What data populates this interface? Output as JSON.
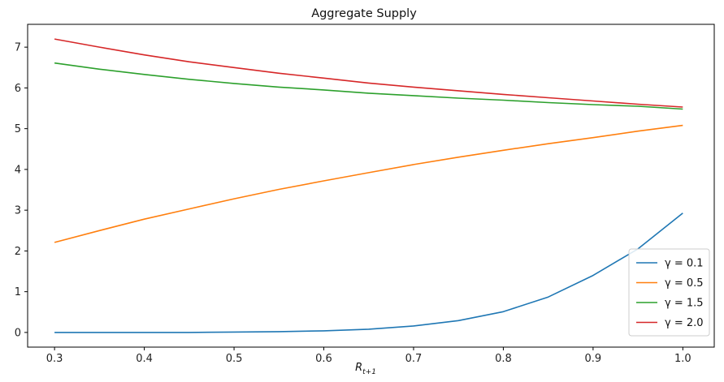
{
  "chart_data": {
    "type": "line",
    "title": "Aggregate Supply",
    "xlabel": "R",
    "xlabel_sub": "t+1",
    "ylabel": "",
    "xlim": [
      0.27,
      1.035
    ],
    "ylim": [
      -0.36,
      7.56
    ],
    "xticks": [
      0.3,
      0.4,
      0.5,
      0.6,
      0.7,
      0.8,
      0.9,
      1.0
    ],
    "xtick_labels": [
      "0.3",
      "0.4",
      "0.5",
      "0.6",
      "0.7",
      "0.8",
      "0.9",
      "1.0"
    ],
    "yticks": [
      0,
      1,
      2,
      3,
      4,
      5,
      6,
      7
    ],
    "ytick_labels": [
      "0",
      "1",
      "2",
      "3",
      "4",
      "5",
      "6",
      "7"
    ],
    "grid": false,
    "legend_position": "bottom-right",
    "x": [
      0.3,
      0.35,
      0.4,
      0.45,
      0.5,
      0.55,
      0.6,
      0.65,
      0.7,
      0.75,
      0.8,
      0.85,
      0.9,
      0.95,
      1.0
    ],
    "series": [
      {
        "name": "γ = 0.1",
        "color": "#1f77b4",
        "values": [
          0.0,
          0.0,
          0.0,
          0.0,
          0.01,
          0.02,
          0.04,
          0.08,
          0.16,
          0.29,
          0.51,
          0.87,
          1.4,
          2.05,
          2.93
        ]
      },
      {
        "name": "γ = 0.5",
        "color": "#ff7f0e",
        "values": [
          2.21,
          2.5,
          2.78,
          3.03,
          3.28,
          3.51,
          3.72,
          3.92,
          4.12,
          4.3,
          4.47,
          4.63,
          4.78,
          4.94,
          5.08
        ]
      },
      {
        "name": "γ = 1.5",
        "color": "#2ca02c",
        "values": [
          6.61,
          6.46,
          6.33,
          6.21,
          6.11,
          6.02,
          5.95,
          5.87,
          5.81,
          5.75,
          5.7,
          5.64,
          5.59,
          5.55,
          5.48
        ]
      },
      {
        "name": "γ = 2.0",
        "color": "#d62728",
        "values": [
          7.2,
          7.0,
          6.81,
          6.64,
          6.5,
          6.36,
          6.24,
          6.12,
          6.02,
          5.93,
          5.84,
          5.76,
          5.68,
          5.6,
          5.53
        ]
      }
    ]
  }
}
